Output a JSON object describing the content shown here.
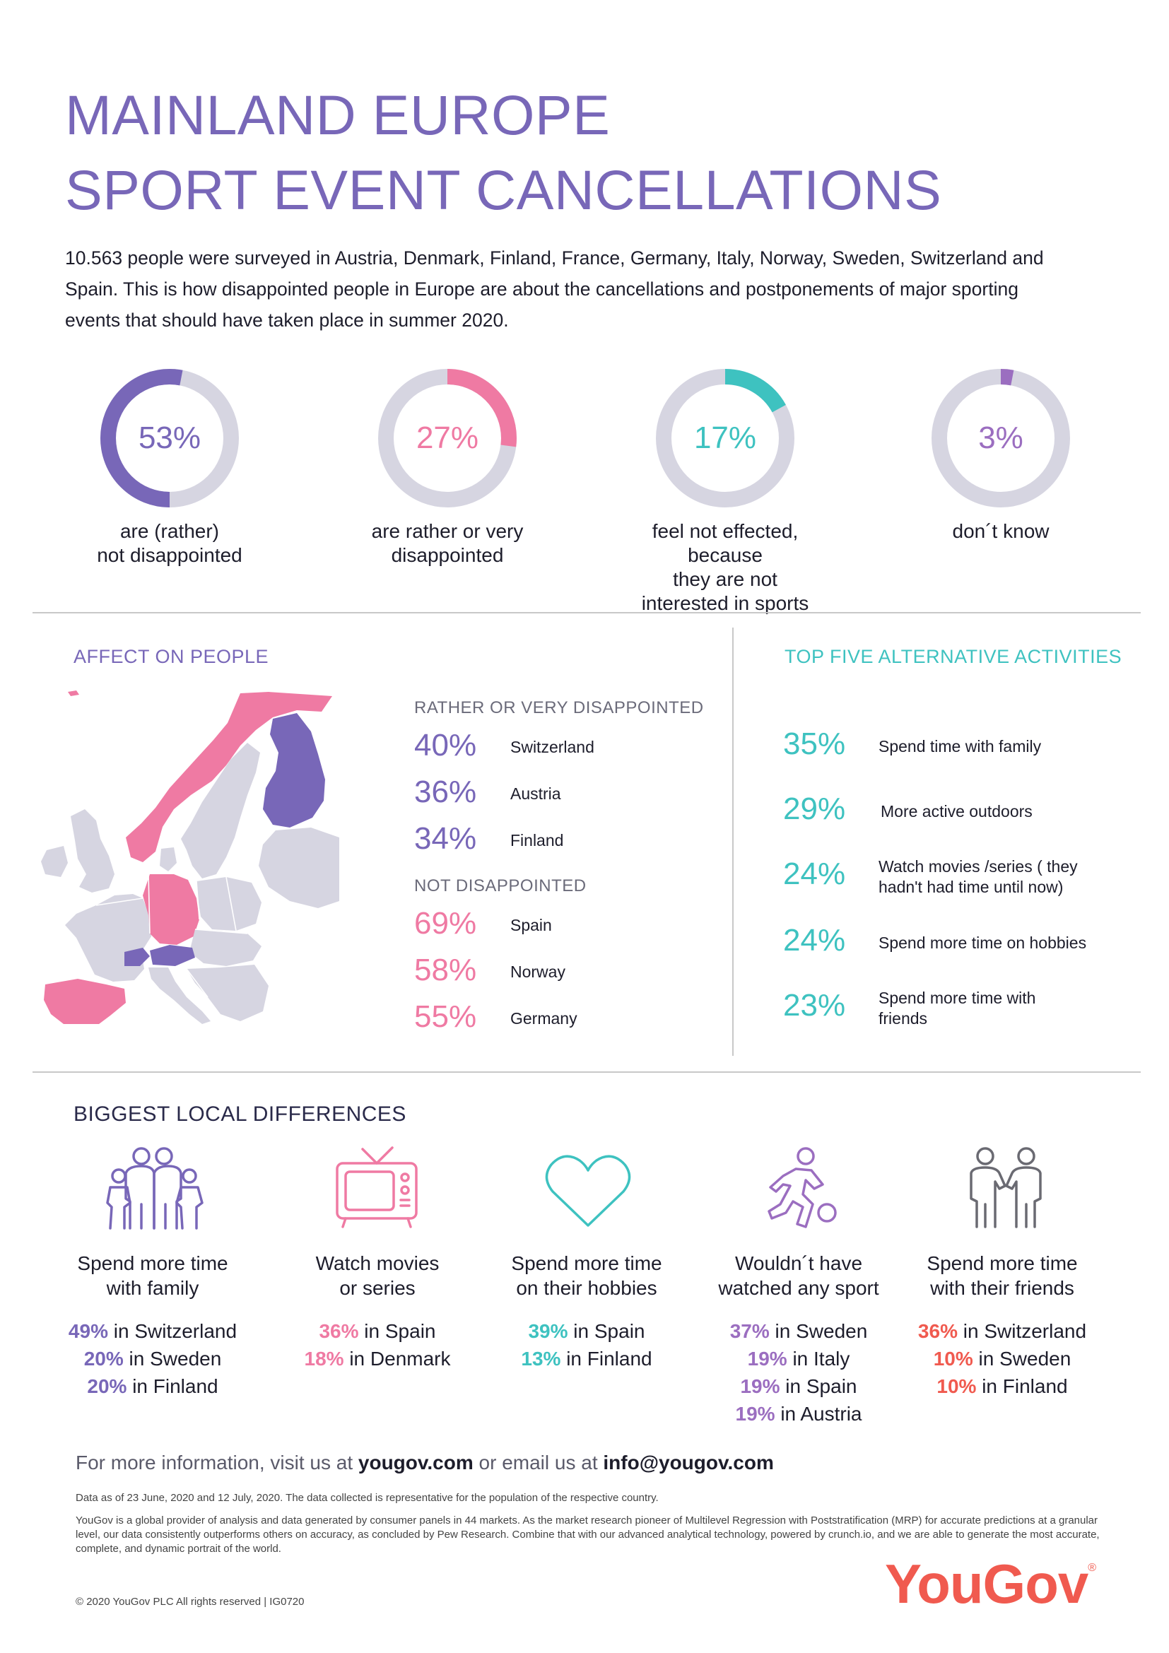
{
  "title": {
    "line1": "MAINLAND EUROPE",
    "line2": "SPORT EVENT CANCELLATIONS"
  },
  "intro": "10.563 people were surveyed in Austria, Denmark, Finland, France, Germany, Italy, Norway, Sweden, Switzerland and Spain. This is how disappointed people in Europe are about the cancellations and postponements of major sporting events that should have taken place in summer 2020.",
  "colors": {
    "purple": "#7867b8",
    "pink": "#ef7aa3",
    "teal": "#3ec2c0",
    "violet": "#9b6ec0",
    "coral": "#f05a4f",
    "ring": "#d6d5e1"
  },
  "donuts": [
    {
      "value": 53,
      "label": "53%",
      "caption": [
        "are (rather)",
        "not disappointed"
      ],
      "color": "#7867b8",
      "start": 0.5
    },
    {
      "value": 27,
      "label": "27%",
      "caption": [
        "are rather or very",
        "disappointed"
      ],
      "color": "#ef7aa3",
      "start": 0
    },
    {
      "value": 17,
      "label": "17%",
      "caption": [
        "feel not effected, because",
        "they are not",
        "interested in sports"
      ],
      "color": "#3ec2c0",
      "start": 0
    },
    {
      "value": 3,
      "label": "3%",
      "caption": [
        "don´t know"
      ],
      "color": "#9b6ec0",
      "start": 0
    }
  ],
  "affect": {
    "title": "AFFECT ON PEOPLE",
    "disappointed_heading": "RATHER OR VERY DISAPPOINTED",
    "disappointed": [
      {
        "pct": "40%",
        "country": "Switzerland"
      },
      {
        "pct": "36%",
        "country": "Austria"
      },
      {
        "pct": "34%",
        "country": "Finland"
      }
    ],
    "not_heading": "NOT DISAPPOINTED",
    "not_disappointed": [
      {
        "pct": "69%",
        "country": "Spain"
      },
      {
        "pct": "58%",
        "country": "Norway"
      },
      {
        "pct": "55%",
        "country": "Germany"
      }
    ]
  },
  "alternatives": {
    "title": "TOP FIVE ALTERNATIVE ACTIVITIES",
    "items": [
      {
        "pct": "35%",
        "label": [
          "Spend time with family"
        ]
      },
      {
        "pct": "29%",
        "label": [
          "More active outdoors"
        ]
      },
      {
        "pct": "24%",
        "label": [
          "Watch movies /series ( they",
          "hadn't had time until now)"
        ]
      },
      {
        "pct": "24%",
        "label": [
          "Spend more time on hobbies"
        ]
      },
      {
        "pct": "23%",
        "label": [
          "Spend more time with",
          "friends"
        ]
      }
    ]
  },
  "differences": {
    "title": "BIGGEST LOCAL DIFFERENCES",
    "items": [
      {
        "icon": "family-icon",
        "caption": [
          "Spend more time",
          "with family"
        ],
        "color": "#7867b8",
        "stats": [
          {
            "pct": "49%",
            "rest": " in Switzerland"
          },
          {
            "pct": "20%",
            "rest": " in Sweden"
          },
          {
            "pct": "20%",
            "rest": " in Finland"
          }
        ]
      },
      {
        "icon": "tv-icon",
        "caption": [
          "Watch movies",
          "or series"
        ],
        "color": "#ef7aa3",
        "stats": [
          {
            "pct": "36%",
            "rest": " in Spain"
          },
          {
            "pct": "18%",
            "rest": " in Denmark"
          }
        ]
      },
      {
        "icon": "heart-icon",
        "caption": [
          "Spend more time",
          "on their hobbies"
        ],
        "color": "#3ec2c0",
        "stats": [
          {
            "pct": "39%",
            "rest": " in Spain"
          },
          {
            "pct": "13%",
            "rest": " in Finland"
          }
        ]
      },
      {
        "icon": "soccer-player-icon",
        "caption": [
          "Wouldn´t have",
          "watched any sport"
        ],
        "color": "#9b6ec0",
        "stats": [
          {
            "pct": "37%",
            "rest": " in Sweden"
          },
          {
            "pct": "19%",
            "rest": " in Italy"
          },
          {
            "pct": "19%",
            "rest": " in Spain"
          },
          {
            "pct": "19%",
            "rest": " in Austria"
          }
        ]
      },
      {
        "icon": "friends-icon",
        "caption": [
          "Spend more time",
          "with their friends"
        ],
        "color": "#f05a4f",
        "stats": [
          {
            "pct": "36%",
            "rest": " in Switzerland"
          },
          {
            "pct": "10%",
            "rest": " in Sweden"
          },
          {
            "pct": "10%",
            "rest": " in Finland"
          }
        ]
      }
    ]
  },
  "footer": {
    "info_pre": "For more information, visit us at ",
    "info_site": "yougov.com",
    "info_mid": " or email us at ",
    "info_email": "info@yougov.com",
    "data_note": "Data as of 23 June, 2020 and 12 July, 2020. The data collected is representative for the population of the respective country.",
    "about": "YouGov is a global provider of analysis and data generated by consumer panels in 44 markets. As the market research pioneer of Multilevel Regression with Poststratification (MRP) for accurate predictions at a granular level, our data consistently outperforms others on accuracy, as concluded by Pew Research. Combine that with our advanced analytical technology, powered by crunch.io, and we are able to generate the most accurate, complete, and dynamic portrait of the world.",
    "copyright": "© 2020 YouGov PLC All rights reserved | IG0720",
    "logo": "YouGov",
    "logo_mark": "®"
  }
}
